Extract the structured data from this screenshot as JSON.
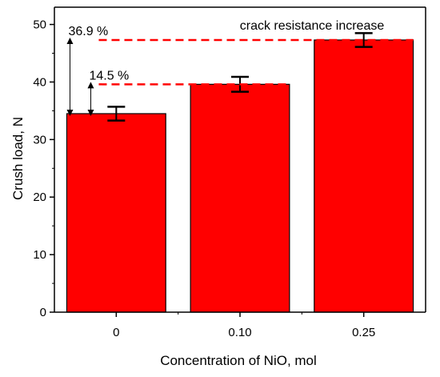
{
  "chart_data": {
    "type": "bar",
    "categories": [
      "0",
      "0.10",
      "0.25"
    ],
    "values": [
      34.5,
      39.6,
      47.3
    ],
    "errors": [
      1.2,
      1.3,
      1.2
    ],
    "xlabel": "Concentration of NiO, mol",
    "ylabel": "Crush load, N",
    "ylim": [
      0,
      53
    ],
    "yticks": [
      0,
      10,
      20,
      30,
      40,
      50
    ],
    "grid": false,
    "legend": "none",
    "annotations": {
      "title_note": "crack resistance increase",
      "pct_low": "14.5 %",
      "pct_high": "36.9 %"
    },
    "colors": {
      "bar": "#ff0000",
      "reference_line": "#ff0000",
      "stroke": "#000000"
    }
  }
}
